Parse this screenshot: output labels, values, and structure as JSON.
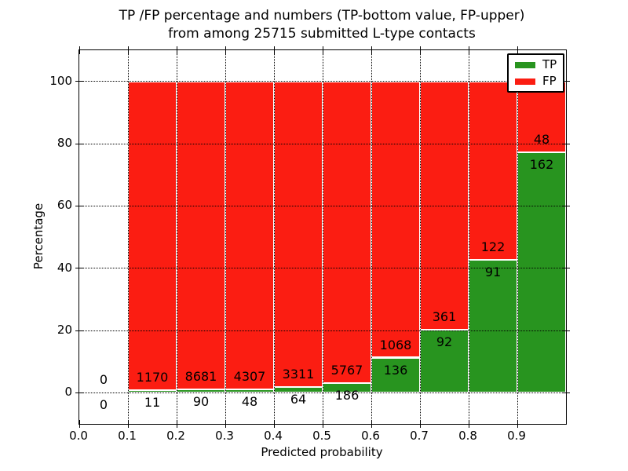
{
  "title": {
    "line1": "TP /FP percentage and numbers (TP-bottom value, FP-upper)",
    "line2": "from among 25715 submitted L-type contacts"
  },
  "axes": {
    "xlabel": "Predicted probability",
    "ylabel": "Percentage"
  },
  "legend": {
    "items": [
      {
        "label": "TP",
        "color": "#28941f"
      },
      {
        "label": "FP",
        "color": "#fb1d12"
      }
    ]
  },
  "colors": {
    "tp_green": "#28941f",
    "fp_red": "#fb1d12",
    "text": "#000000",
    "background": "#ffffff"
  },
  "chart_data": {
    "type": "bar",
    "stacked": true,
    "title": "TP /FP percentage and numbers (TP-bottom value, FP-upper) from among 25715 submitted L-type contacts",
    "xlabel": "Predicted probability",
    "ylabel": "Percentage",
    "total_submitted": 25715,
    "xlim": [
      0.0,
      1.0
    ],
    "ylim": [
      -10,
      110
    ],
    "grid": true,
    "legend_position": "upper right",
    "xticks": [
      0.0,
      0.1,
      0.2,
      0.3,
      0.4,
      0.5,
      0.6,
      0.7,
      0.8,
      0.9
    ],
    "xtick_labels": [
      "0.0",
      "0.1",
      "0.2",
      "0.3",
      "0.4",
      "0.5",
      "0.6",
      "0.7",
      "0.8",
      "0.9"
    ],
    "yticks": [
      0,
      20,
      40,
      60,
      80,
      100
    ],
    "ytick_labels": [
      "0",
      "20",
      "40",
      "60",
      "80",
      "100"
    ],
    "categories": [
      "0.0-0.1",
      "0.1-0.2",
      "0.2-0.3",
      "0.3-0.4",
      "0.4-0.5",
      "0.5-0.6",
      "0.6-0.7",
      "0.7-0.8",
      "0.8-0.9",
      "0.9-1.0"
    ],
    "series": [
      {
        "name": "TP",
        "counts": [
          0,
          11,
          90,
          48,
          64,
          186,
          136,
          92,
          91,
          162
        ],
        "values_pct": [
          0,
          0.93,
          1.03,
          1.1,
          1.9,
          3.12,
          11.3,
          20.31,
          42.72,
          77.14
        ]
      },
      {
        "name": "FP",
        "counts": [
          0,
          1170,
          8681,
          4307,
          3311,
          5767,
          1068,
          361,
          122,
          48
        ],
        "values_pct": [
          0,
          99.07,
          98.97,
          98.9,
          98.1,
          96.88,
          88.7,
          79.69,
          57.28,
          22.86
        ]
      }
    ],
    "bins": [
      {
        "x0": 0.0,
        "tp_count": 0,
        "fp_count": 0,
        "tp_pct": 0.0,
        "fp_pct": 0.0
      },
      {
        "x0": 0.1,
        "tp_count": 11,
        "fp_count": 1170,
        "tp_pct": 0.93,
        "fp_pct": 99.07
      },
      {
        "x0": 0.2,
        "tp_count": 90,
        "fp_count": 8681,
        "tp_pct": 1.03,
        "fp_pct": 98.97
      },
      {
        "x0": 0.3,
        "tp_count": 48,
        "fp_count": 4307,
        "tp_pct": 1.1,
        "fp_pct": 98.9
      },
      {
        "x0": 0.4,
        "tp_count": 64,
        "fp_count": 3311,
        "tp_pct": 1.9,
        "fp_pct": 98.1
      },
      {
        "x0": 0.5,
        "tp_count": 186,
        "fp_count": 5767,
        "tp_pct": 3.12,
        "fp_pct": 96.88
      },
      {
        "x0": 0.6,
        "tp_count": 136,
        "fp_count": 1068,
        "tp_pct": 11.3,
        "fp_pct": 88.7
      },
      {
        "x0": 0.7,
        "tp_count": 92,
        "fp_count": 361,
        "tp_pct": 20.31,
        "fp_pct": 79.69
      },
      {
        "x0": 0.8,
        "tp_count": 91,
        "fp_count": 122,
        "tp_pct": 42.72,
        "fp_pct": 57.28
      },
      {
        "x0": 0.9,
        "tp_count": 162,
        "fp_count": 48,
        "tp_pct": 77.14,
        "fp_pct": 22.86
      }
    ]
  }
}
